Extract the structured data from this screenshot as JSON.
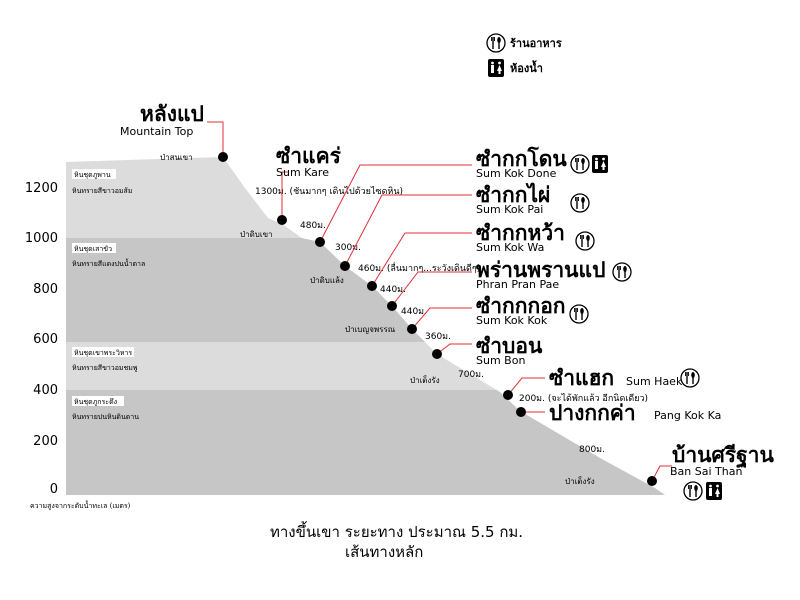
{
  "legend": {
    "restaurant_label": "ร้านอาหาร",
    "restaurant_icon": "fork-spoon-icon",
    "toilet_label": "ห้องน้ำ",
    "toilet_icon": "toilet-icon"
  },
  "axis": {
    "ticks": [
      "0",
      "200",
      "400",
      "600",
      "800",
      "1000",
      "1200"
    ],
    "ylabel": "ความสูงจากระดับน้ำทะเล (เมตร)"
  },
  "strata": [
    {
      "name": "หินชุดภูพาน",
      "rock": "หินทรายสีขาวอมส้ม"
    },
    {
      "name": "หินชุดเสาขัว",
      "rock": "หินทรายสีแดงปนน้ำตาล"
    },
    {
      "name": "หินชุดเขาพระวิหาร",
      "rock": "หินทรายสีขาวอมชมพู"
    },
    {
      "name": "หินชุดภูกระดึง",
      "rock": "หินทรายปนหินดินดาน"
    }
  ],
  "forest_zones": [
    "ป่าสนเขา",
    "ป่าดิบเขา",
    "ป่าดิบแล้ง",
    "ป่าเบญจพรรณ",
    "ป่าเต็งรัง",
    "ป่าเต็งรัง"
  ],
  "stops": [
    {
      "th": "หลังแป",
      "en": "Mountain Top",
      "distance": ""
    },
    {
      "th": "ซำแคร่",
      "en": "Sum Kare",
      "distance": "1300ม. (ชันมากๆ เดินไปด้วยไซดหิน)"
    },
    {
      "th": "ซำกกโดน",
      "en": "Sum Kok Done",
      "distance": "480ม."
    },
    {
      "th": "ซำกกไผ่",
      "en": "Sum Kok Pai",
      "distance": "300ม."
    },
    {
      "th": "ซำกกหว้า",
      "en": "Sum Kok Wa",
      "distance": "460ม. (ลื่นมากๆ...ระวังเดินดีๆ)"
    },
    {
      "th": "พร่านพรานแป",
      "en": "Phran Pran Pae",
      "distance": "440ม."
    },
    {
      "th": "ซำกกกอก",
      "en": "Sum Kok Kok",
      "distance": "440ม."
    },
    {
      "th": "ซำบอน",
      "en": "Sum Bon",
      "distance": "360ม."
    },
    {
      "th": "ซำแฮก",
      "en": "Sum Haek",
      "distance": "700ม."
    },
    {
      "th": "ปางกกค่า",
      "en": "Pang Kok Ka",
      "distance": "200ม. (จะได้พักแล้ว อีกนิดเดียว)"
    },
    {
      "th": "บ้านศรีฐาน",
      "en": "Ban Sai Than",
      "distance": "800ม."
    }
  ],
  "footer": {
    "line1": "ทางขึ้นเขา ระยะทาง ประมาณ 5.5 กม.",
    "line2": "เส้นทางหลัก"
  }
}
